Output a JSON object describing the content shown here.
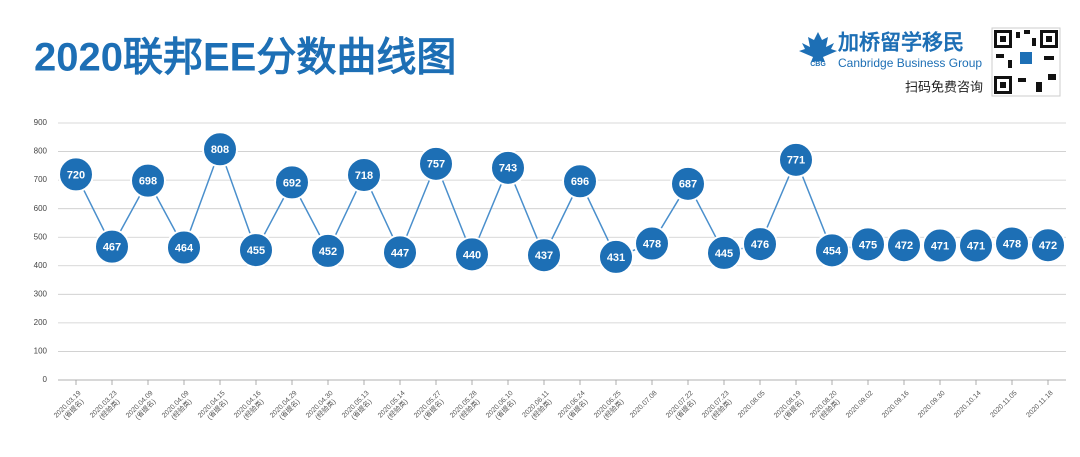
{
  "header": {
    "brand_abbr": "CBG",
    "brand_name": "加桥留学移民",
    "brand_english": "Canbridge Business Group",
    "qr_caption": "扫码免费咨询"
  },
  "chart_data": {
    "type": "line",
    "title": "2020联邦EE分数曲线图",
    "categories": [
      "2020.03.19",
      "2020.03.23",
      "2020.04.09",
      "2020.04.09",
      "2020.04.15",
      "2020.04.16",
      "2020.04.29",
      "2020.04.30",
      "2020.05.13",
      "2020.05.14",
      "2020.05.27",
      "2020.05.28",
      "2020.06.10",
      "2020.06.11",
      "2020.06.24",
      "2020.06.25",
      "2020.07.08",
      "2020.07.22",
      "2020.07.23",
      "2020.08.05",
      "2020.08.19",
      "2020.08.20",
      "2020.09.02",
      "2020.09.16",
      "2020.09.30",
      "2020.10.14",
      "2020.11.05",
      "2020.11.18"
    ],
    "category_notes": [
      "(省提名)",
      "(经验类)",
      "(省提名)",
      "(经验类)",
      "(省提名)",
      "(经验类)",
      "(省提名)",
      "(经验类)",
      "(省提名)",
      "(经验类)",
      "(省提名)",
      "(经验类)",
      "(省提名)",
      "(经验类)",
      "(省提名)",
      "(经验类)",
      null,
      "(省提名)",
      "(经验类)",
      null,
      "(省提名)",
      "(经验类)",
      null,
      null,
      null,
      null,
      null,
      null
    ],
    "values": [
      720,
      467,
      698,
      464,
      808,
      455,
      692,
      452,
      718,
      447,
      757,
      440,
      743,
      437,
      696,
      431,
      478,
      687,
      445,
      476,
      771,
      454,
      475,
      472,
      471,
      471,
      478,
      472
    ],
    "color": "#1d6fb5",
    "line_color": "#4a8fcc",
    "ylim": [
      0,
      900
    ],
    "yticks": [
      0,
      100,
      200,
      300,
      400,
      500,
      600,
      700,
      800,
      900
    ],
    "grid": true
  }
}
